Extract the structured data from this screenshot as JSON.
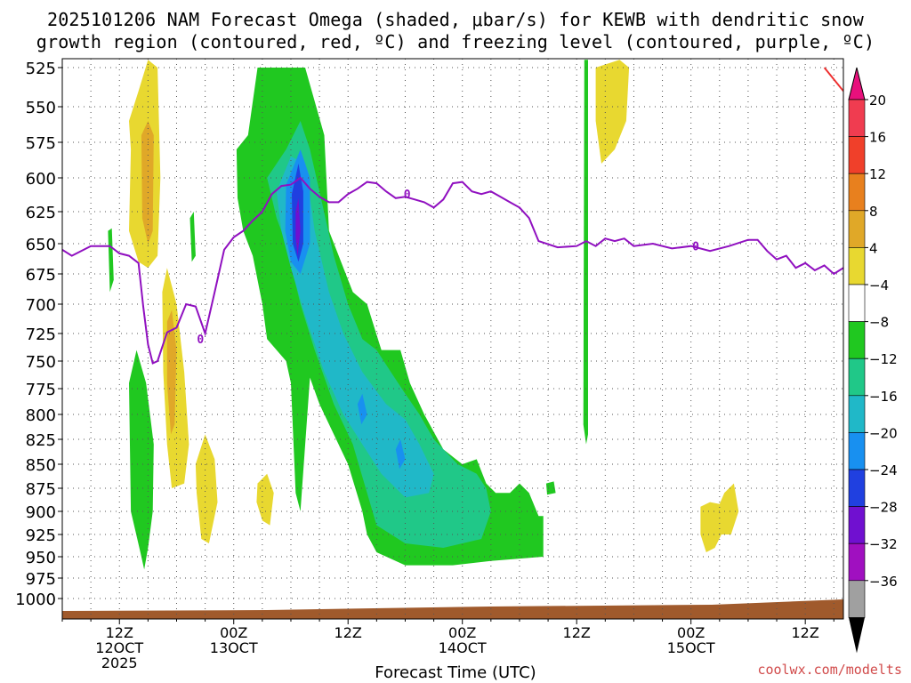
{
  "chart_data": {
    "type": "contour",
    "title_line1": "2025101206 NAM Forecast Omega (shaded, μbar/s) for KEWB with dendritic snow",
    "title_line2": "growth region (contoured, red, ºC) and freezing level (contoured, purple, ºC)",
    "xlabel": "Forecast Time (UTC)",
    "credit": "coolwx.com/modelts",
    "y_ticks": [
      "525",
      "550",
      "575",
      "600",
      "625",
      "650",
      "675",
      "700",
      "725",
      "750",
      "775",
      "800",
      "825",
      "850",
      "875",
      "900",
      "925",
      "950",
      "975",
      "1000"
    ],
    "x_ticks": [
      {
        "h": 6,
        "line1": "12Z",
        "line2": "12OCT",
        "line3": "2025"
      },
      {
        "h": 18,
        "line1": "00Z",
        "line2": "13OCT",
        "line3": ""
      },
      {
        "h": 30,
        "line1": "12Z",
        "line2": "",
        "line3": ""
      },
      {
        "h": 42,
        "line1": "00Z",
        "line2": "14OCT",
        "line3": ""
      },
      {
        "h": 54,
        "line1": "12Z",
        "line2": "",
        "line3": ""
      },
      {
        "h": 66,
        "line1": "00Z",
        "line2": "15OCT",
        "line3": ""
      },
      {
        "h": 78,
        "line1": "12Z",
        "line2": "",
        "line3": ""
      }
    ],
    "colorbar": {
      "labels": [
        "20",
        "16",
        "12",
        "8",
        "4",
        "−4",
        "−8",
        "−12",
        "−16",
        "−20",
        "−24",
        "−28",
        "−32",
        "−36"
      ],
      "colors": [
        "#f03c50",
        "#f0402a",
        "#e8801e",
        "#e0a828",
        "#e8d830",
        "#ffffff",
        "#20c820",
        "#20c888",
        "#20b8c8",
        "#1890f0",
        "#2040e0",
        "#7010d0",
        "#a010c0",
        "#a0a0a0"
      ],
      "top_arrow_color": "#e8107c",
      "bottom_arrow_color": "#000000"
    },
    "freezing_level_label": "0",
    "freezing_level": [
      [
        0,
        655
      ],
      [
        1,
        660
      ],
      [
        3,
        652
      ],
      [
        5,
        652
      ],
      [
        6,
        658
      ],
      [
        7,
        660
      ],
      [
        8,
        666
      ],
      [
        8.5,
        702
      ],
      [
        9,
        735
      ],
      [
        9.5,
        752
      ],
      [
        10,
        750
      ],
      [
        11,
        724
      ],
      [
        12,
        720
      ],
      [
        13,
        700
      ],
      [
        14,
        702
      ],
      [
        15,
        725
      ],
      [
        16,
        690
      ],
      [
        17,
        655
      ],
      [
        18,
        645
      ],
      [
        19,
        640
      ],
      [
        20,
        632
      ],
      [
        21,
        625
      ],
      [
        22,
        612
      ],
      [
        23,
        606
      ],
      [
        24,
        605
      ],
      [
        25,
        600
      ],
      [
        26,
        608
      ],
      [
        27,
        614
      ],
      [
        28,
        618
      ],
      [
        29,
        618
      ],
      [
        30,
        612
      ],
      [
        31,
        608
      ],
      [
        32,
        603
      ],
      [
        33,
        604
      ],
      [
        34,
        610
      ],
      [
        35,
        615
      ],
      [
        36,
        614
      ],
      [
        37,
        616
      ],
      [
        38,
        618
      ],
      [
        39,
        622
      ],
      [
        40,
        616
      ],
      [
        41,
        604
      ],
      [
        42,
        603
      ],
      [
        43,
        610
      ],
      [
        44,
        612
      ],
      [
        45,
        610
      ],
      [
        46,
        614
      ],
      [
        47,
        618
      ],
      [
        48,
        622
      ],
      [
        49,
        630
      ],
      [
        50,
        648
      ],
      [
        52,
        653
      ],
      [
        54,
        652
      ],
      [
        55,
        648
      ],
      [
        56,
        652
      ],
      [
        57,
        646
      ],
      [
        58,
        648
      ],
      [
        59,
        646
      ],
      [
        60,
        652
      ],
      [
        62,
        650
      ],
      [
        64,
        654
      ],
      [
        66,
        652
      ],
      [
        68,
        656
      ],
      [
        70,
        652
      ],
      [
        72,
        647
      ],
      [
        73,
        647
      ],
      [
        74,
        656
      ],
      [
        75,
        663
      ],
      [
        76,
        660
      ],
      [
        77,
        670
      ],
      [
        78,
        666
      ],
      [
        79,
        672
      ],
      [
        80,
        668
      ],
      [
        81,
        675
      ],
      [
        82,
        670
      ]
    ],
    "dgz_line": [
      [
        80,
        525
      ],
      [
        82,
        540
      ]
    ],
    "omega_regions": [
      {
        "name": "yellow-left-top",
        "color": "#e8d830",
        "pts": [
          [
            7,
            560
          ],
          [
            8,
            540
          ],
          [
            9,
            520
          ],
          [
            10,
            525
          ],
          [
            10.3,
            600
          ],
          [
            10,
            660
          ],
          [
            9,
            670
          ],
          [
            8,
            665
          ],
          [
            7,
            640
          ],
          [
            7.2,
            580
          ]
        ]
      },
      {
        "name": "orange-left-top",
        "color": "#e0a828",
        "pts": [
          [
            8.3,
            570
          ],
          [
            9,
            560
          ],
          [
            9.6,
            570
          ],
          [
            9.5,
            640
          ],
          [
            9,
            650
          ],
          [
            8.4,
            630
          ]
        ]
      },
      {
        "name": "yellow-left-mid",
        "color": "#e8d830",
        "pts": [
          [
            10.5,
            690
          ],
          [
            11,
            670
          ],
          [
            12,
            700
          ],
          [
            12.8,
            760
          ],
          [
            13.3,
            830
          ],
          [
            12.8,
            870
          ],
          [
            11.5,
            875
          ],
          [
            11,
            830
          ],
          [
            10.6,
            760
          ]
        ]
      },
      {
        "name": "orange-left-mid",
        "color": "#e0a828",
        "pts": [
          [
            11,
            715
          ],
          [
            11.5,
            705
          ],
          [
            12,
            740
          ],
          [
            11.8,
            810
          ],
          [
            11.4,
            820
          ],
          [
            11,
            770
          ]
        ]
      },
      {
        "name": "yellow-left-low",
        "color": "#e8d830",
        "pts": [
          [
            14,
            850
          ],
          [
            15,
            820
          ],
          [
            16,
            845
          ],
          [
            16.3,
            890
          ],
          [
            15.4,
            935
          ],
          [
            14.6,
            930
          ],
          [
            14.1,
            880
          ]
        ]
      },
      {
        "name": "yellow-small",
        "color": "#e8d830",
        "pts": [
          [
            20.5,
            870
          ],
          [
            21.5,
            860
          ],
          [
            22.2,
            880
          ],
          [
            21.8,
            915
          ],
          [
            21,
            910
          ],
          [
            20.4,
            890
          ]
        ]
      },
      {
        "name": "green-left",
        "color": "#20c820",
        "pts": [
          [
            7,
            770
          ],
          [
            7.8,
            740
          ],
          [
            8.8,
            770
          ],
          [
            9.6,
            830
          ],
          [
            9.5,
            900
          ],
          [
            9,
            940
          ],
          [
            8.6,
            965
          ],
          [
            8.2,
            945
          ],
          [
            7.2,
            900
          ]
        ]
      },
      {
        "name": "green-left-thin",
        "color": "#20c820",
        "pts": [
          [
            4.8,
            640
          ],
          [
            5.2,
            638
          ],
          [
            5.4,
            680
          ],
          [
            5,
            690
          ]
        ]
      },
      {
        "name": "green-mid-thin",
        "color": "#20c820",
        "pts": [
          [
            13.4,
            630
          ],
          [
            13.8,
            625
          ],
          [
            14,
            660
          ],
          [
            13.6,
            665
          ]
        ]
      },
      {
        "name": "green-main",
        "color": "#20c820",
        "pts": [
          [
            18.3,
            580
          ],
          [
            19.5,
            570
          ],
          [
            20.5,
            525
          ],
          [
            22,
            525
          ],
          [
            24,
            525
          ],
          [
            25.5,
            525
          ],
          [
            27.5,
            570
          ],
          [
            28,
            640
          ],
          [
            30.5,
            690
          ],
          [
            32,
            700
          ],
          [
            33.5,
            740
          ],
          [
            35.5,
            740
          ],
          [
            36.5,
            770
          ],
          [
            38,
            800
          ],
          [
            40,
            835
          ],
          [
            42,
            850
          ],
          [
            43.5,
            845
          ],
          [
            44.5,
            870
          ],
          [
            45.5,
            880
          ],
          [
            47,
            880
          ],
          [
            48,
            870
          ],
          [
            49,
            880
          ],
          [
            50,
            905
          ],
          [
            50.5,
            905
          ],
          [
            50.5,
            950
          ],
          [
            45,
            955
          ],
          [
            41,
            960
          ],
          [
            36,
            960
          ],
          [
            33,
            945
          ],
          [
            32,
            925
          ],
          [
            31.5,
            900
          ],
          [
            30,
            850
          ],
          [
            28.5,
            820
          ],
          [
            27,
            790
          ],
          [
            26,
            765
          ],
          [
            25,
            900
          ],
          [
            24.5,
            880
          ],
          [
            24,
            770
          ],
          [
            23.5,
            750
          ],
          [
            22.5,
            740
          ],
          [
            21.5,
            730
          ],
          [
            21,
            700
          ],
          [
            20,
            660
          ],
          [
            19,
            640
          ],
          [
            18.4,
            615
          ]
        ]
      },
      {
        "name": "green-vertical",
        "color": "#20c820",
        "pts": [
          [
            54.8,
            520
          ],
          [
            55.2,
            520
          ],
          [
            55.2,
            820
          ],
          [
            55,
            830
          ],
          [
            54.7,
            810
          ]
        ]
      },
      {
        "name": "green-right-small",
        "color": "#20c820",
        "pts": [
          [
            50.8,
            870
          ],
          [
            51.6,
            868
          ],
          [
            51.8,
            880
          ],
          [
            50.9,
            882
          ]
        ]
      },
      {
        "name": "yellow-right-top",
        "color": "#e8d830",
        "pts": [
          [
            56,
            525
          ],
          [
            58.5,
            520
          ],
          [
            59.5,
            525
          ],
          [
            59.2,
            560
          ],
          [
            58,
            580
          ],
          [
            56.6,
            590
          ],
          [
            56,
            560
          ]
        ]
      },
      {
        "name": "yellow-right-low",
        "color": "#e8d830",
        "pts": [
          [
            67,
            895
          ],
          [
            68,
            890
          ],
          [
            69,
            892
          ],
          [
            69.5,
            880
          ],
          [
            70.5,
            870
          ],
          [
            71,
            900
          ],
          [
            70.2,
            925
          ],
          [
            69.2,
            925
          ],
          [
            68.5,
            940
          ],
          [
            67.6,
            945
          ],
          [
            67,
            925
          ]
        ]
      },
      {
        "name": "teal-main",
        "color": "#20c888",
        "pts": [
          [
            21.5,
            600
          ],
          [
            23.5,
            580
          ],
          [
            25,
            560
          ],
          [
            26,
            580
          ],
          [
            27,
            610
          ],
          [
            28.5,
            660
          ],
          [
            30,
            700
          ],
          [
            31.5,
            730
          ],
          [
            33,
            740
          ],
          [
            34.5,
            760
          ],
          [
            36,
            780
          ],
          [
            37.5,
            800
          ],
          [
            39,
            825
          ],
          [
            41.5,
            850
          ],
          [
            43.5,
            860
          ],
          [
            44.5,
            875
          ],
          [
            45,
            900
          ],
          [
            44,
            930
          ],
          [
            40,
            940
          ],
          [
            36,
            935
          ],
          [
            33,
            915
          ],
          [
            32,
            880
          ],
          [
            30.5,
            830
          ],
          [
            28.5,
            790
          ],
          [
            26.5,
            740
          ],
          [
            25,
            700
          ],
          [
            23.5,
            650
          ],
          [
            22.5,
            630
          ]
        ]
      },
      {
        "name": "cyan-main",
        "color": "#20b8c8",
        "pts": [
          [
            22.5,
            610
          ],
          [
            24,
            585
          ],
          [
            25.5,
            590
          ],
          [
            26.5,
            640
          ],
          [
            28,
            690
          ],
          [
            29.5,
            725
          ],
          [
            31.5,
            760
          ],
          [
            34,
            790
          ],
          [
            36,
            805
          ],
          [
            37.5,
            830
          ],
          [
            39,
            860
          ],
          [
            38.5,
            880
          ],
          [
            36,
            885
          ],
          [
            33.5,
            860
          ],
          [
            31.5,
            830
          ],
          [
            29.5,
            800
          ],
          [
            27.5,
            760
          ],
          [
            25.5,
            710
          ],
          [
            24,
            670
          ],
          [
            23,
            640
          ]
        ]
      },
      {
        "name": "lightblue-main",
        "color": "#1890f0",
        "pts": [
          [
            23.5,
            605
          ],
          [
            25,
            580
          ],
          [
            26,
            600
          ],
          [
            26,
            650
          ],
          [
            25,
            675
          ],
          [
            24,
            665
          ],
          [
            23.4,
            640
          ]
        ]
      },
      {
        "name": "lightblue-spot1",
        "color": "#1890f0",
        "pts": [
          [
            31,
            790
          ],
          [
            31.5,
            780
          ],
          [
            32,
            800
          ],
          [
            31.4,
            810
          ]
        ]
      },
      {
        "name": "lightblue-spot2",
        "color": "#1890f0",
        "pts": [
          [
            35,
            835
          ],
          [
            35.5,
            825
          ],
          [
            36,
            845
          ],
          [
            35.4,
            855
          ]
        ]
      },
      {
        "name": "blue-core",
        "color": "#2040e0",
        "pts": [
          [
            24.1,
            612
          ],
          [
            24.8,
            590
          ],
          [
            25.3,
            610
          ],
          [
            25.3,
            650
          ],
          [
            24.8,
            665
          ],
          [
            24.2,
            650
          ]
        ]
      },
      {
        "name": "purple-core",
        "color": "#7010d0",
        "pts": [
          [
            24.5,
            625
          ],
          [
            24.8,
            615
          ],
          [
            25,
            640
          ],
          [
            24.7,
            660
          ],
          [
            24.5,
            645
          ]
        ]
      }
    ],
    "terrain_color": "#a05a2c"
  }
}
